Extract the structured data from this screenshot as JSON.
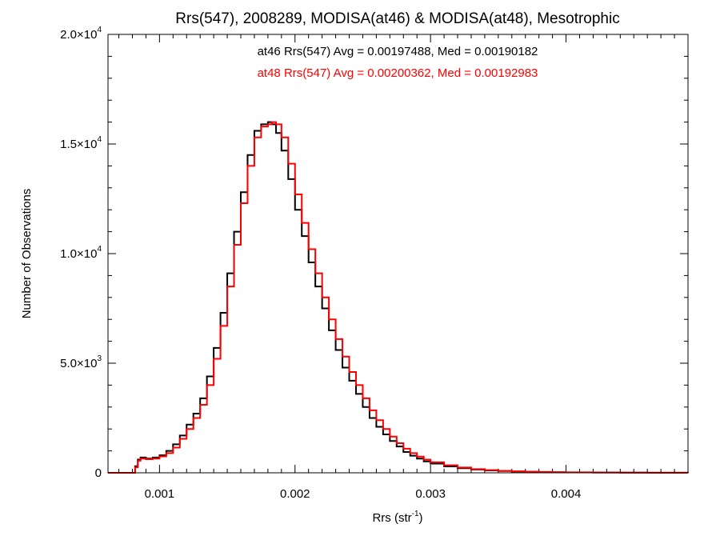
{
  "chart_data": {
    "type": "line",
    "title": "Rrs(547), 2008289, MODISA(at46) & MODISA(at48), Mesotrophic",
    "xlabel_main": "Rrs (str",
    "xlabel_sup": "-1",
    "xlabel_tail": ")",
    "ylabel": "Number of Observations",
    "xlim": [
      0.00062,
      0.0049
    ],
    "ylim": [
      0,
      20000
    ],
    "x_ticks": [
      {
        "value": 0.001,
        "label": "0.001"
      },
      {
        "value": 0.002,
        "label": "0.002"
      },
      {
        "value": 0.003,
        "label": "0.003"
      },
      {
        "value": 0.004,
        "label": "0.004"
      }
    ],
    "y_ticks": [
      {
        "value": 0,
        "mant": "0",
        "exp": ""
      },
      {
        "value": 5000,
        "mant": "5.0×10",
        "exp": "3"
      },
      {
        "value": 10000,
        "mant": "1.0×10",
        "exp": "4"
      },
      {
        "value": 15000,
        "mant": "1.5×10",
        "exp": "4"
      },
      {
        "value": 20000,
        "mant": "2.0×10",
        "exp": "4"
      }
    ],
    "annotations": [
      {
        "text": "at46 Rrs(547) Avg = 0.00197488, Med = 0.00190182",
        "color": "#000000"
      },
      {
        "text": "at48 Rrs(547) Avg = 0.00200362, Med = 0.00192983",
        "color": "#ff0000"
      }
    ],
    "series": [
      {
        "color": "#000000",
        "x": [
          0.00062,
          0.0008,
          0.00082,
          0.00084,
          0.00086,
          0.0009,
          0.00095,
          0.001,
          0.00105,
          0.0011,
          0.00115,
          0.0012,
          0.00125,
          0.0013,
          0.00135,
          0.0014,
          0.00145,
          0.0015,
          0.00155,
          0.0016,
          0.00165,
          0.0017,
          0.00175,
          0.0018,
          0.00183,
          0.00186,
          0.0019,
          0.00195,
          0.002,
          0.00205,
          0.0021,
          0.00215,
          0.0022,
          0.00225,
          0.0023,
          0.00235,
          0.0024,
          0.00245,
          0.0025,
          0.00255,
          0.0026,
          0.00265,
          0.0027,
          0.00275,
          0.0028,
          0.00285,
          0.0029,
          0.00295,
          0.003,
          0.0031,
          0.0032,
          0.0033,
          0.0034,
          0.0035,
          0.0036,
          0.0037,
          0.0038,
          0.0039,
          0.004,
          0.0042,
          0.0044,
          0.0046,
          0.0049
        ],
        "y": [
          0,
          0,
          300,
          600,
          700,
          650,
          700,
          800,
          1000,
          1300,
          1700,
          2200,
          2700,
          3400,
          4400,
          5700,
          7300,
          9100,
          11000,
          12800,
          14500,
          15600,
          15900,
          16000,
          15900,
          15500,
          14700,
          13400,
          12000,
          10800,
          9600,
          8500,
          7500,
          6500,
          5600,
          4800,
          4200,
          3600,
          3000,
          2500,
          2100,
          1750,
          1450,
          1200,
          950,
          780,
          650,
          520,
          420,
          290,
          210,
          150,
          110,
          80,
          60,
          45,
          35,
          25,
          20,
          12,
          7,
          4,
          0
        ]
      },
      {
        "color": "#ff0000",
        "x": [
          0.00062,
          0.0008,
          0.00082,
          0.00084,
          0.00086,
          0.0009,
          0.00095,
          0.001,
          0.00105,
          0.0011,
          0.00115,
          0.0012,
          0.00125,
          0.0013,
          0.00135,
          0.0014,
          0.00145,
          0.0015,
          0.00155,
          0.0016,
          0.00165,
          0.0017,
          0.00175,
          0.0018,
          0.00183,
          0.00186,
          0.0019,
          0.00195,
          0.002,
          0.00205,
          0.0021,
          0.00215,
          0.0022,
          0.00225,
          0.0023,
          0.00235,
          0.0024,
          0.00245,
          0.0025,
          0.00255,
          0.0026,
          0.00265,
          0.0027,
          0.00275,
          0.0028,
          0.00285,
          0.0029,
          0.00295,
          0.003,
          0.0031,
          0.0032,
          0.0033,
          0.0034,
          0.0035,
          0.0036,
          0.0037,
          0.0038,
          0.0039,
          0.004,
          0.0042,
          0.0044,
          0.0046,
          0.0049
        ],
        "y": [
          0,
          0,
          250,
          550,
          650,
          620,
          650,
          750,
          900,
          1150,
          1550,
          2000,
          2500,
          3100,
          4000,
          5200,
          6700,
          8500,
          10400,
          12300,
          14000,
          15300,
          15800,
          15900,
          16000,
          15900,
          15300,
          14100,
          12700,
          11400,
          10200,
          9100,
          8000,
          7000,
          6100,
          5300,
          4600,
          4000,
          3400,
          2850,
          2400,
          2000,
          1650,
          1350,
          1100,
          900,
          740,
          600,
          480,
          340,
          240,
          170,
          125,
          90,
          68,
          50,
          40,
          30,
          22,
          14,
          8,
          4,
          0
        ]
      }
    ]
  }
}
